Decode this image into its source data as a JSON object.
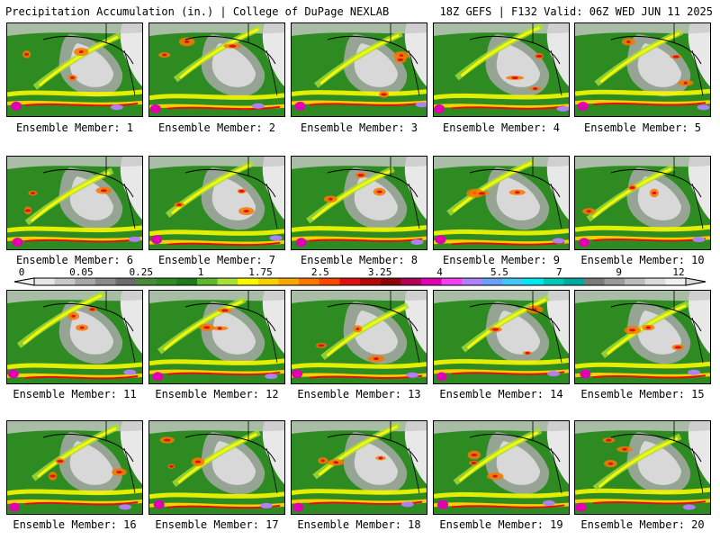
{
  "header": {
    "title_left": "Precipitation Accumulation (in.) | College of DuPage NEXLAB",
    "title_right": "18Z GEFS | F132 Valid: 06Z WED JUN 11 2025"
  },
  "members": [
    {
      "label": "Ensemble Member: 1"
    },
    {
      "label": "Ensemble Member: 2"
    },
    {
      "label": "Ensemble Member: 3"
    },
    {
      "label": "Ensemble Member: 4"
    },
    {
      "label": "Ensemble Member: 5"
    },
    {
      "label": "Ensemble Member: 6"
    },
    {
      "label": "Ensemble Member: 7"
    },
    {
      "label": "Ensemble Member: 8"
    },
    {
      "label": "Ensemble Member: 9"
    },
    {
      "label": "Ensemble Member: 10"
    },
    {
      "label": "Ensemble Member: 11"
    },
    {
      "label": "Ensemble Member: 12"
    },
    {
      "label": "Ensemble Member: 13"
    },
    {
      "label": "Ensemble Member: 14"
    },
    {
      "label": "Ensemble Member: 15"
    },
    {
      "label": "Ensemble Member: 16"
    },
    {
      "label": "Ensemble Member: 17"
    },
    {
      "label": "Ensemble Member: 18"
    },
    {
      "label": "Ensemble Member: 19"
    },
    {
      "label": "Ensemble Member: 20"
    }
  ],
  "colorbar": {
    "labels": [
      "0",
      "0.05",
      "0.25",
      "1",
      "1.75",
      "2.5",
      "3.25",
      "4",
      "5.5",
      "7",
      "9",
      "12"
    ],
    "colors": [
      "#e6e6e6",
      "#c8c8c8",
      "#a8a8a8",
      "#8a8a8a",
      "#6c6c6c",
      "#4a8a3a",
      "#2e8b22",
      "#1f7a18",
      "#5cb82e",
      "#a8e03a",
      "#f8f800",
      "#f8d000",
      "#f8a800",
      "#f87800",
      "#f84800",
      "#e01010",
      "#b40808",
      "#8c0404",
      "#b00058",
      "#e000b0",
      "#f040f0",
      "#b080f8",
      "#6ca0f8",
      "#40c8f8",
      "#00e8f0",
      "#00c8b8",
      "#00a8a0",
      "#7a7a7a",
      "#9a9a9a",
      "#bcbcbc",
      "#dadada",
      "#f0f0f0"
    ]
  }
}
